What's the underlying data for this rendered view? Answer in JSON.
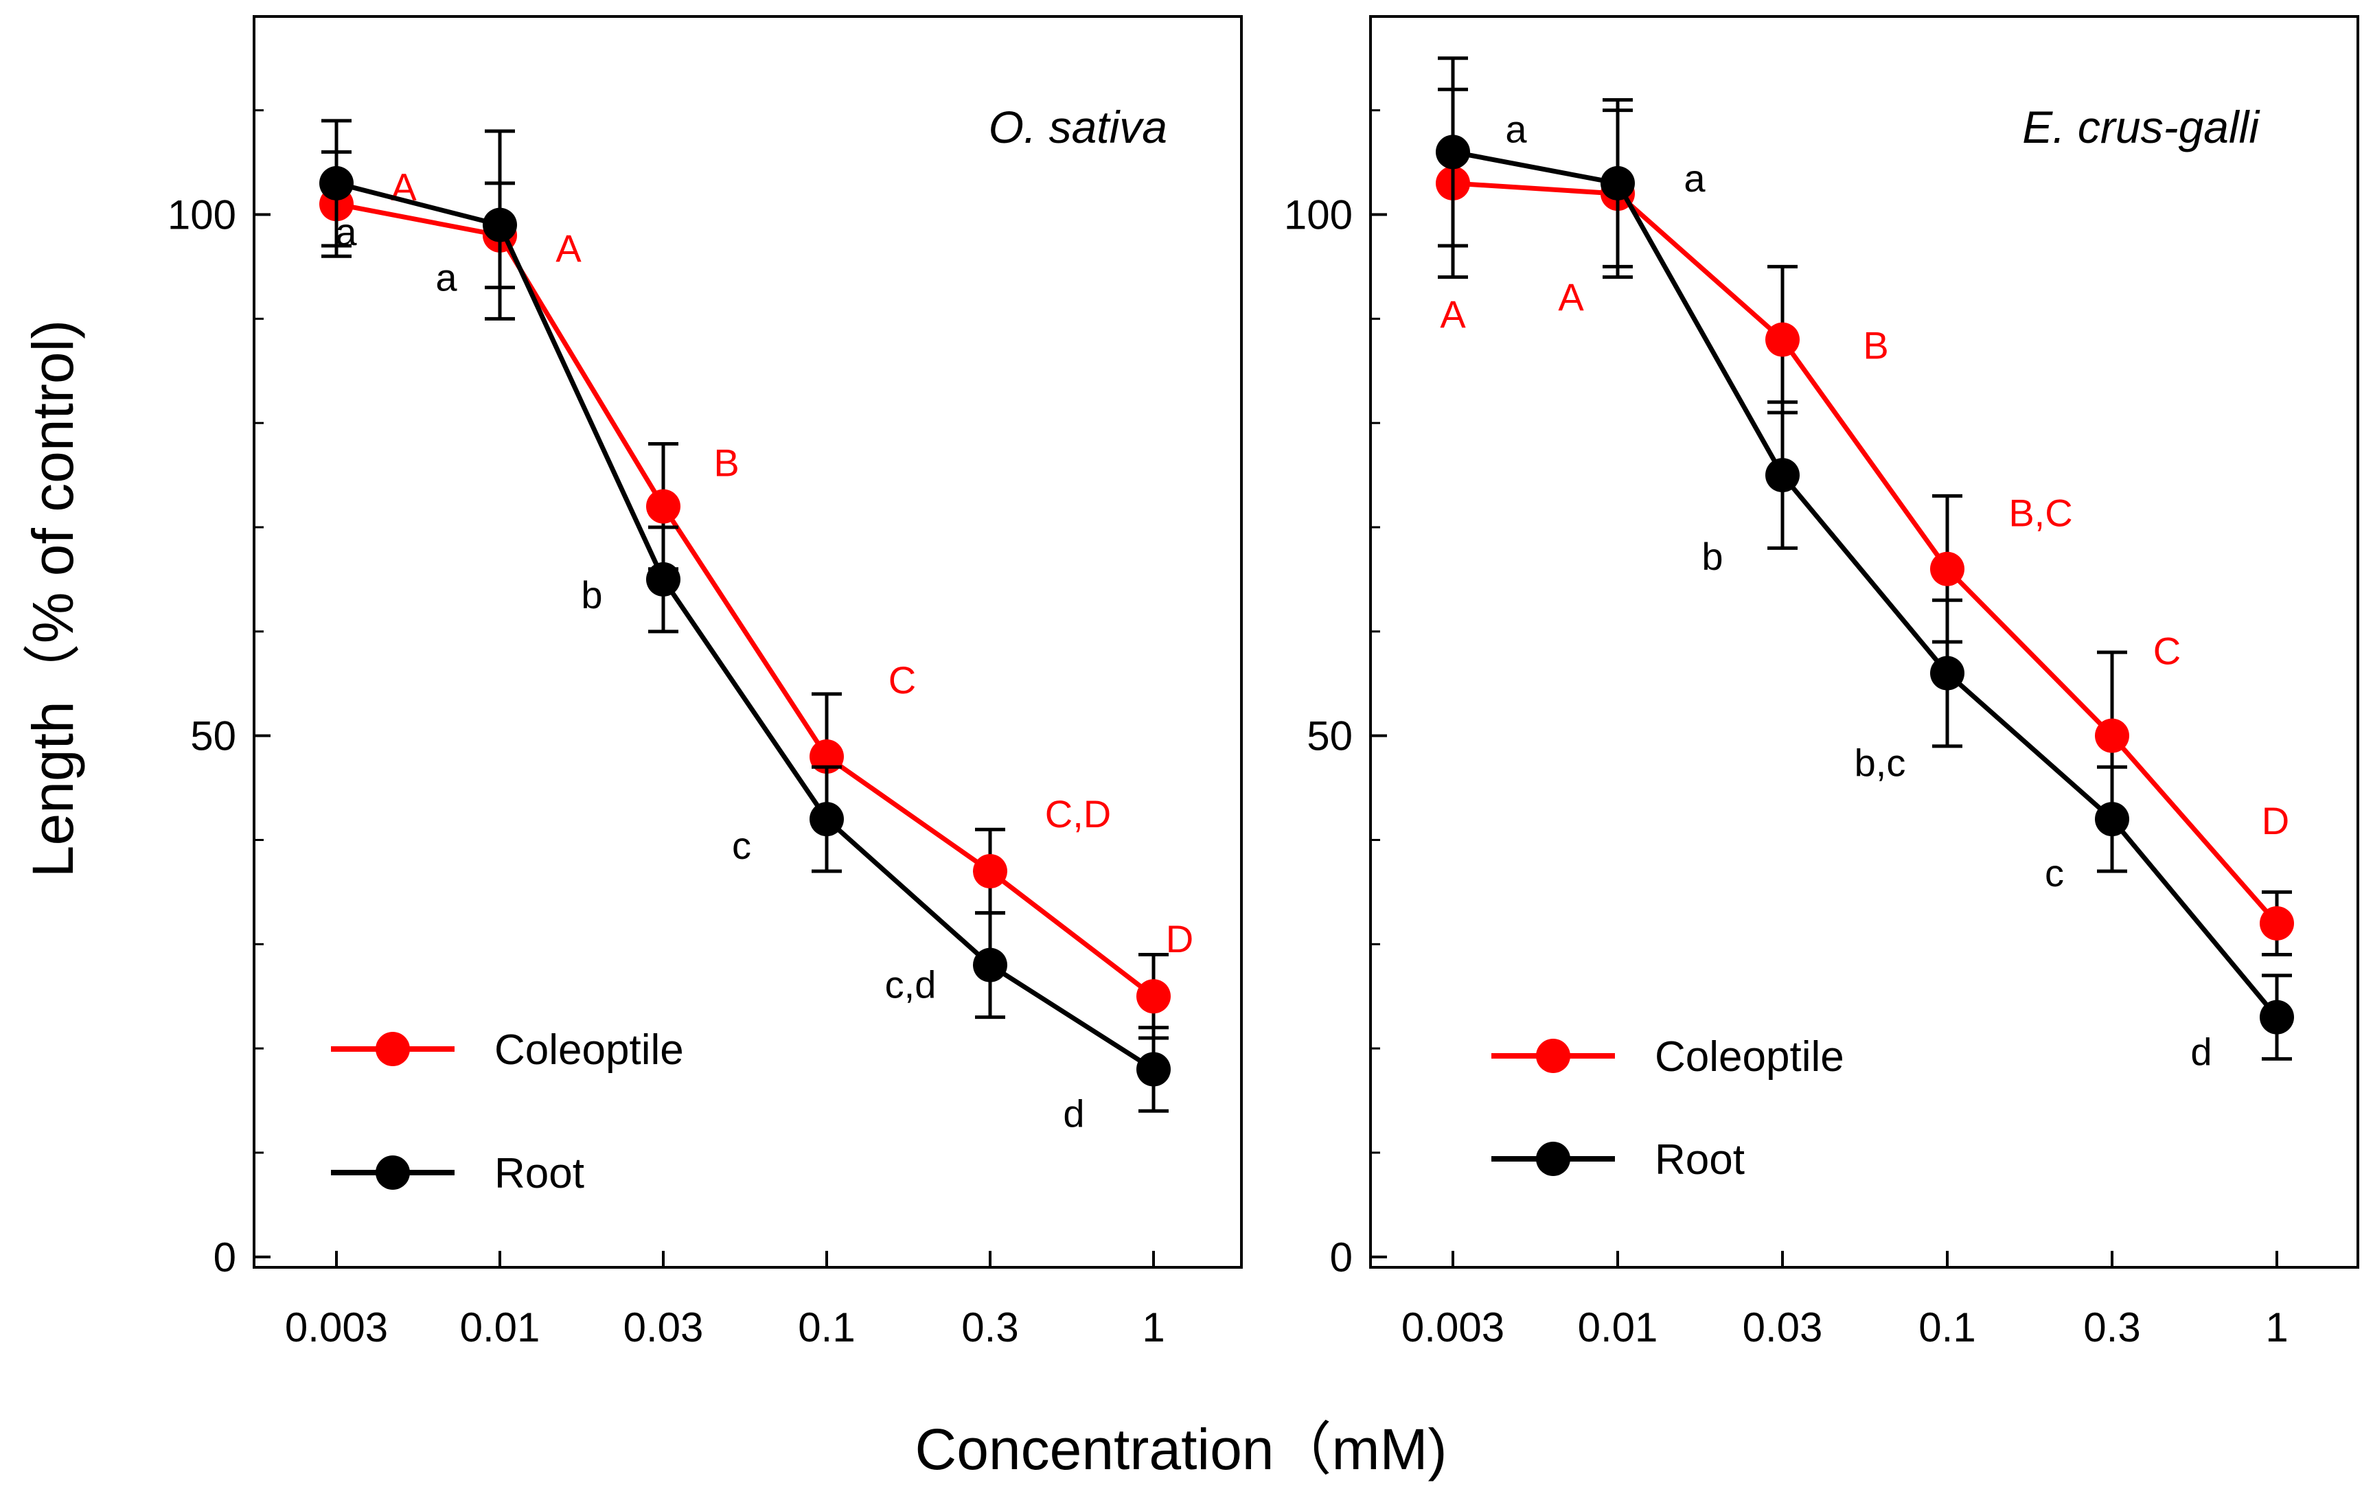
{
  "colors": {
    "coleoptile": "#ff0000",
    "root": "#000000",
    "axis": "#000000"
  },
  "xlabel": "Concentration（mM)",
  "ylabel": "Length（% of control)",
  "chart_data": [
    {
      "type": "line",
      "title": "O. sativa",
      "categories": [
        "0.003",
        "0.01",
        "0.03",
        "0.1",
        "0.3",
        "1"
      ],
      "yticks": [
        "0",
        "50",
        "100"
      ],
      "ylim": [
        -1,
        119
      ],
      "series": [
        {
          "name": "Coleoptile",
          "color": "#ff0000",
          "values": [
            101,
            98,
            72,
            48,
            37,
            25
          ],
          "errors": [
            5,
            5,
            6,
            6,
            4,
            4
          ],
          "letters": [
            "A",
            "A",
            "B",
            "C",
            "C,D",
            "D"
          ]
        },
        {
          "name": "Root",
          "color": "#000000",
          "values": [
            103,
            99,
            65,
            42,
            28,
            18
          ],
          "errors": [
            6,
            9,
            5,
            5,
            5,
            4
          ],
          "letters": [
            "a",
            "a",
            "b",
            "c",
            "c,d",
            "d"
          ]
        }
      ],
      "legend": [
        "Coleoptile",
        "Root"
      ]
    },
    {
      "type": "line",
      "title": "E. crus-galli",
      "categories": [
        "0.003",
        "0.01",
        "0.03",
        "0.1",
        "0.3",
        "1"
      ],
      "yticks": [
        "0",
        "50",
        "100"
      ],
      "ylim": [
        -1,
        119
      ],
      "series": [
        {
          "name": "Coleoptile",
          "color": "#ff0000",
          "values": [
            103,
            102,
            88,
            66,
            50,
            32
          ],
          "errors": [
            9,
            8,
            7,
            7,
            8,
            3
          ],
          "letters": [
            "A",
            "A",
            "B",
            "B,C",
            "C",
            "D"
          ]
        },
        {
          "name": "Root",
          "color": "#000000",
          "values": [
            106,
            103,
            75,
            56,
            42,
            23
          ],
          "errors": [
            9,
            8,
            7,
            7,
            5,
            4
          ],
          "letters": [
            "a",
            "a",
            "b",
            "b,c",
            "c",
            "d"
          ]
        }
      ],
      "legend": [
        "Coleoptile",
        "Root"
      ]
    }
  ]
}
